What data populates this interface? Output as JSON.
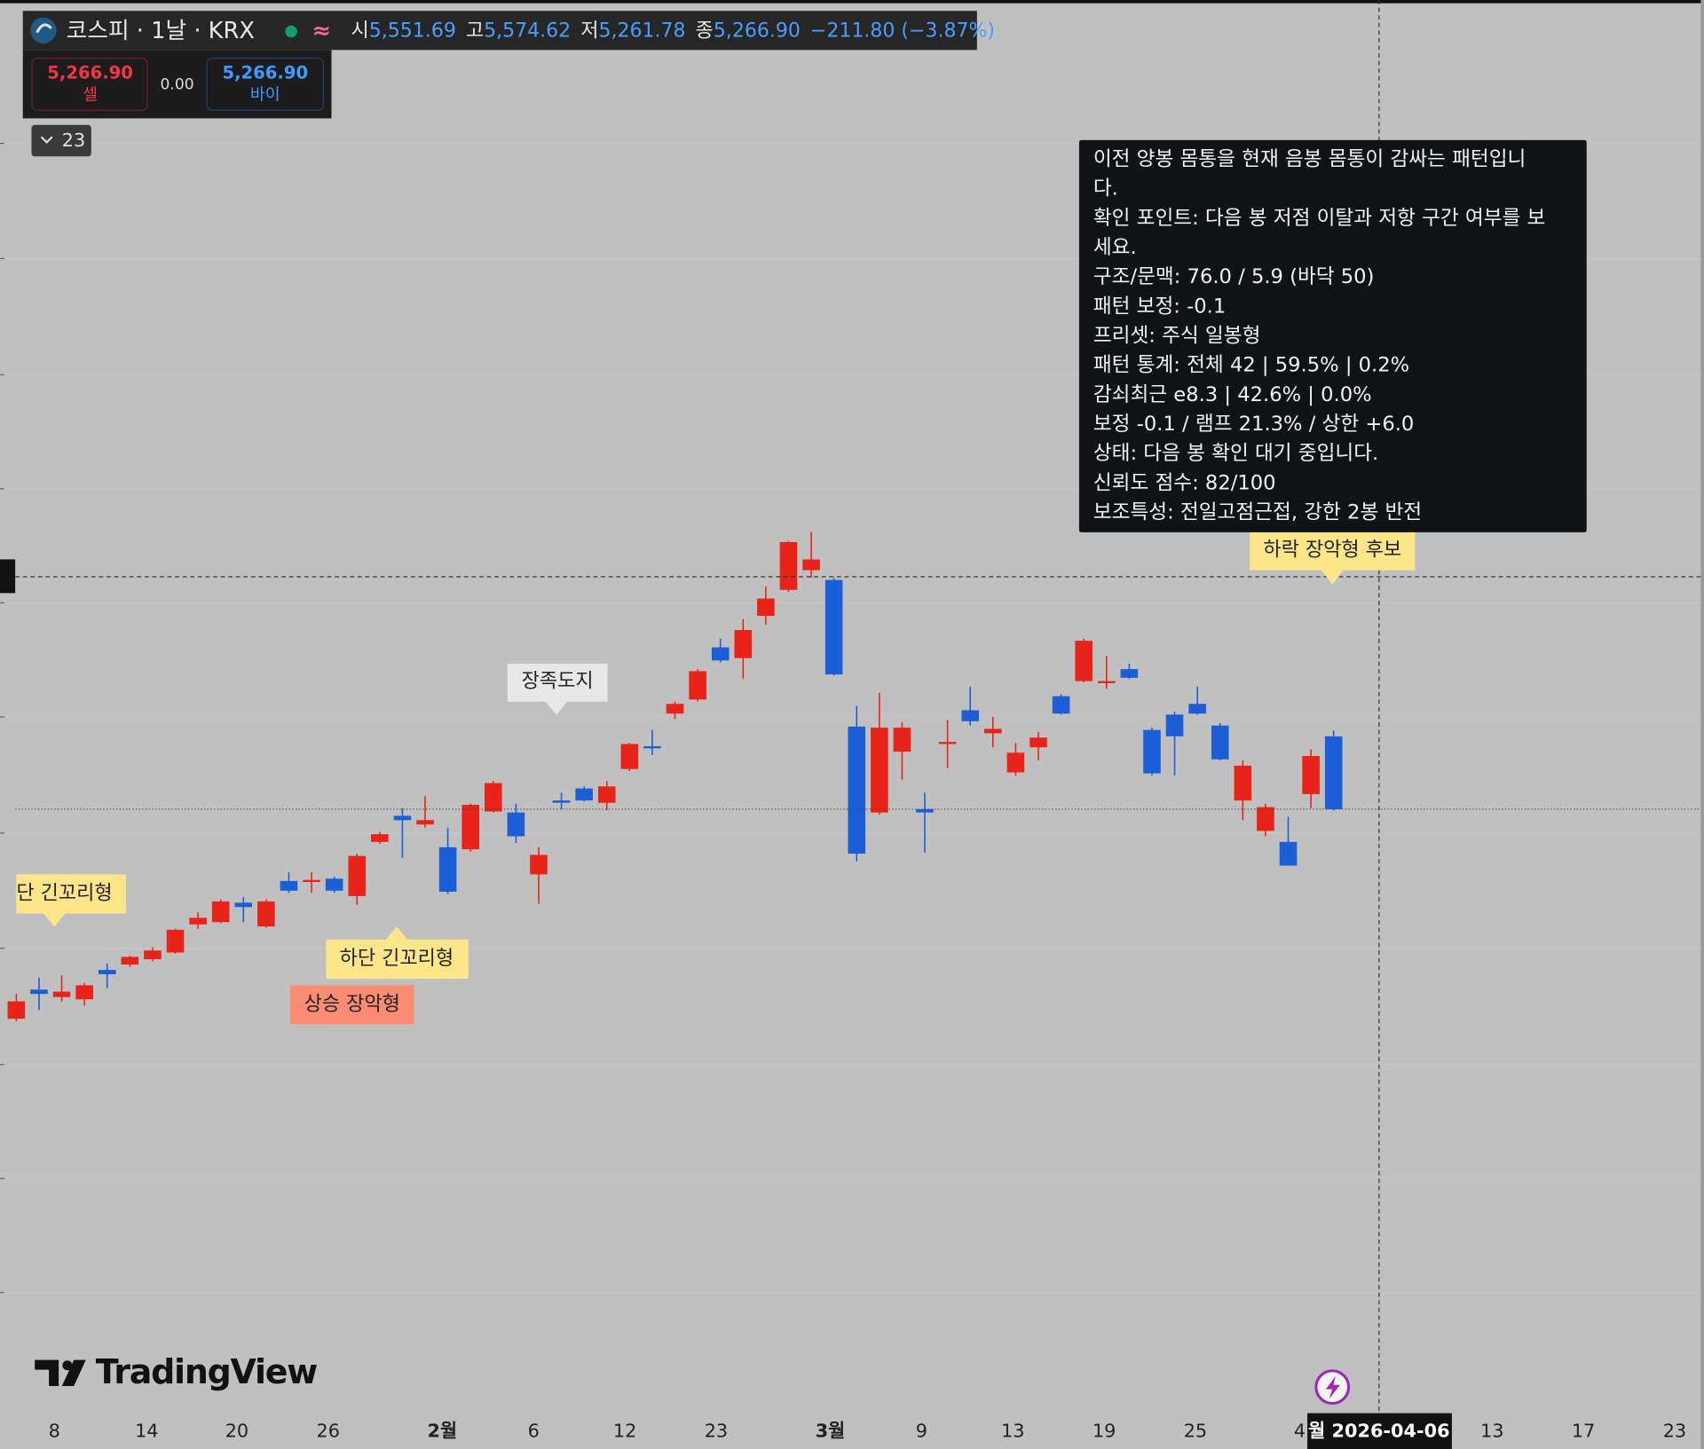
{
  "header": {
    "symbol": "코스피 · 1날 · KRX",
    "approx_icon": "≈",
    "open_label": "시",
    "open": "5,551.69",
    "high_label": "고",
    "high": "5,574.62",
    "low_label": "저",
    "low": "5,261.78",
    "close_label": "종",
    "close": "5,266.90",
    "change": "−211.80 (−3.87%)"
  },
  "trade": {
    "sell_price": "5,266.90",
    "sell_label": "셀",
    "spread": "0.00",
    "buy_price": "5,266.90",
    "buy_label": "바이"
  },
  "indicator_toggle": "23",
  "chart_data": {
    "type": "candlestick",
    "up_color": "#e8231a",
    "down_color": "#1b5ed6",
    "ylim": [
      2908,
      8433
    ],
    "open": [
      4447,
      4561,
      4532,
      4523,
      4638,
      4659,
      4680,
      4706,
      4816,
      4825,
      4901,
      4808,
      4986,
      4982,
      4995,
      4927,
      5139,
      5241,
      5207,
      5118,
      5110,
      5258,
      5254,
      5012,
      5301,
      5348,
      5292,
      5424,
      5513,
      5641,
      5696,
      5900,
      5858,
      6023,
      6125,
      6202,
      6164,
      5590,
      5254,
      5492,
      5267,
      5522,
      5654,
      5564,
      5411,
      5509,
      5709,
      5768,
      5760,
      5815,
      5577,
      5637,
      5679,
      5594,
      5301,
      5182,
      5139,
      5326,
      5551.69
    ],
    "high": [
      4544,
      4608,
      4617,
      4587,
      4663,
      4693,
      4727,
      4799,
      4863,
      4914,
      4923,
      4914,
      5020,
      5020,
      5003,
      5093,
      5178,
      5271,
      5318,
      5195,
      5288,
      5377,
      5288,
      5118,
      5331,
      5356,
      5377,
      5526,
      5577,
      5688,
      5815,
      5934,
      6011,
      6138,
      6317,
      6351,
      6172,
      5671,
      5722,
      5607,
      5331,
      5615,
      5747,
      5628,
      5526,
      5569,
      5717,
      5934,
      5866,
      5836,
      5586,
      5649,
      5747,
      5603,
      5458,
      5288,
      5237,
      5501,
      5574.62
    ],
    "low": [
      4438,
      4481,
      4515,
      4498,
      4566,
      4651,
      4672,
      4701,
      4799,
      4821,
      4825,
      4804,
      4940,
      4940,
      4940,
      4893,
      5131,
      5076,
      5195,
      4935,
      5101,
      5254,
      5135,
      4897,
      5267,
      5297,
      5263,
      5416,
      5479,
      5620,
      5688,
      5841,
      5777,
      5989,
      6117,
      6172,
      5790,
      5063,
      5246,
      5382,
      5097,
      5428,
      5594,
      5509,
      5399,
      5458,
      5637,
      5764,
      5739,
      5777,
      5399,
      5399,
      5637,
      5458,
      5224,
      5161,
      5046,
      5271,
      5261.78
    ],
    "close": [
      4515,
      4544,
      4553,
      4578,
      4621,
      4689,
      4714,
      4795,
      4842,
      4906,
      4884,
      4906,
      4948,
      4990,
      4948,
      5084,
      5169,
      5224,
      5224,
      4944,
      5284,
      5369,
      5161,
      5088,
      5292,
      5301,
      5356,
      5522,
      5505,
      5679,
      5807,
      5849,
      5968,
      6091,
      6312,
      6244,
      5794,
      5093,
      5586,
      5586,
      5254,
      5530,
      5611,
      5581,
      5488,
      5547,
      5641,
      5926,
      5768,
      5781,
      5407,
      5552,
      5641,
      5462,
      5437,
      5275,
      5046,
      5475,
      5266.9
    ]
  },
  "x_axis": {
    "labels": [
      "8",
      "14",
      "20",
      "26",
      "2월",
      "6",
      "12",
      "23",
      "3월",
      "9",
      "13",
      "19",
      "25",
      "4",
      "13",
      "17",
      "23"
    ],
    "crosshair_date": "월 2026-04-06"
  },
  "annotations": [
    "단 긴꼬리형",
    "하단 긴꼬리형",
    "상승 장악형",
    "장족도지",
    "하락 장악형 후보"
  ],
  "tooltip": {
    "lines": [
      "이전 양봉 몸통을 현재 음봉 몸통이 감싸는 패턴입니",
      "다.",
      "확인 포인트: 다음 봉 저점 이탈과 저항 구간 여부를 보",
      "세요.",
      "구조/문맥: 76.0 / 5.9 (바닥 50)",
      "패턴 보정: -0.1",
      "프리셋: 주식 일봉형",
      "패턴 통계: 전체 42 | 59.5% | 0.2%",
      "감쇠최근 e8.3 | 42.6% | 0.0%",
      "보정 -0.1 / 램프 21.3% / 상한 +6.0",
      "상태: 다음 봉 확인 대기 중입니다.",
      "신뢰도 점수: 82/100",
      "보조특성: 전일고점근접, 강한 2봉 반전"
    ]
  },
  "watermark": "TradingView"
}
